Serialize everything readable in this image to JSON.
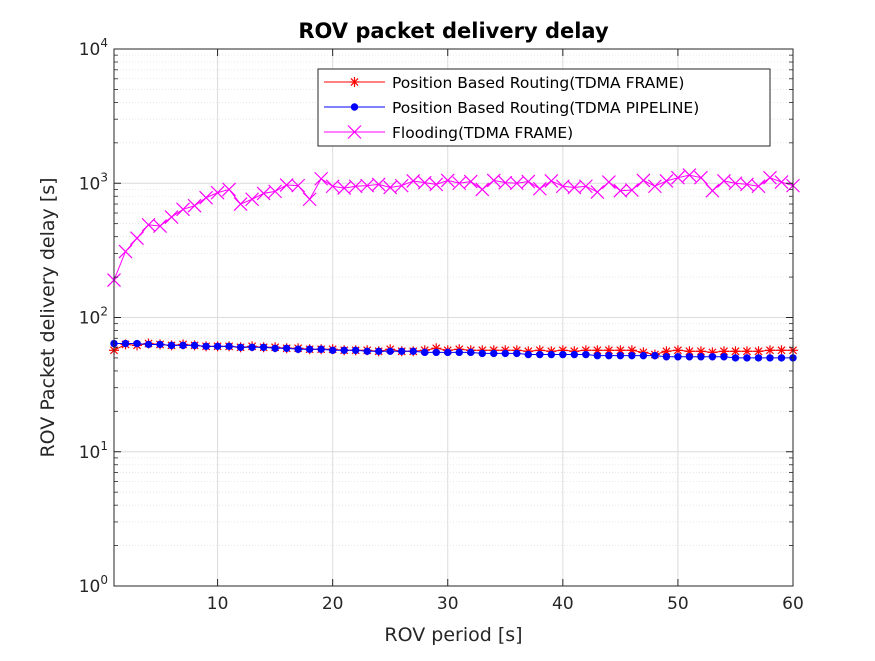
{
  "chart_data": {
    "type": "line",
    "title": "ROV packet delivery delay",
    "xlabel": "ROV period [s]",
    "ylabel": "ROV Packet delivery delay [s]",
    "xlim": [
      1,
      60
    ],
    "ylim": [
      1,
      10000
    ],
    "yscale": "log",
    "x_ticks": [
      10,
      20,
      30,
      40,
      50,
      60
    ],
    "y_ticks": [
      {
        "value": 1,
        "base": "10",
        "exp": "0"
      },
      {
        "value": 10,
        "base": "10",
        "exp": "1"
      },
      {
        "value": 100,
        "base": "10",
        "exp": "2"
      },
      {
        "value": 1000,
        "base": "10",
        "exp": "3"
      },
      {
        "value": 10000,
        "base": "10",
        "exp": "4"
      }
    ],
    "grid": true,
    "legend_position": "top-right",
    "x": [
      1,
      2,
      3,
      4,
      5,
      6,
      7,
      8,
      9,
      10,
      11,
      12,
      13,
      14,
      15,
      16,
      17,
      18,
      19,
      20,
      21,
      22,
      23,
      24,
      25,
      26,
      27,
      28,
      29,
      30,
      31,
      32,
      33,
      34,
      35,
      36,
      37,
      38,
      39,
      40,
      41,
      42,
      43,
      44,
      45,
      46,
      47,
      48,
      49,
      50,
      51,
      52,
      53,
      54,
      55,
      56,
      57,
      58,
      59,
      60
    ],
    "series": [
      {
        "name": "Position Based Routing(TDMA FRAME)",
        "color": "#ff0000",
        "marker": "asterisk",
        "values": [
          57,
          63,
          62,
          64,
          63,
          62,
          63,
          62,
          61,
          61,
          61,
          60,
          61,
          60,
          60,
          59,
          59,
          58,
          58,
          58,
          57,
          57,
          57,
          56,
          58,
          56,
          56,
          57,
          59,
          57,
          58,
          57,
          57,
          57,
          57,
          57,
          56,
          57,
          56,
          57,
          56,
          57,
          57,
          57,
          57,
          57,
          55,
          53,
          56,
          57,
          56,
          56,
          55,
          56,
          56,
          56,
          56,
          57,
          57,
          57
        ]
      },
      {
        "name": "Position Based Routing(TDMA PIPELINE)",
        "color": "#0000ff",
        "marker": "dot",
        "values": [
          64,
          64,
          64,
          63,
          63,
          62,
          62,
          62,
          61,
          61,
          61,
          60,
          60,
          60,
          59,
          59,
          58,
          58,
          58,
          57,
          57,
          57,
          56,
          56,
          56,
          56,
          56,
          55,
          55,
          55,
          55,
          55,
          54,
          54,
          54,
          54,
          53,
          53,
          53,
          53,
          53,
          53,
          52,
          52,
          52,
          52,
          52,
          52,
          51,
          51,
          51,
          51,
          51,
          51,
          50,
          50,
          50,
          50,
          50,
          50
        ]
      },
      {
        "name": "Flooding(TDMA FRAME)",
        "color": "#ff00ff",
        "marker": "cross",
        "values": [
          190,
          310,
          390,
          490,
          480,
          560,
          640,
          680,
          780,
          850,
          900,
          700,
          760,
          840,
          870,
          970,
          960,
          760,
          1080,
          950,
          920,
          950,
          960,
          980,
          930,
          960,
          1040,
          1010,
          980,
          1050,
          1000,
          1030,
          900,
          1050,
          1010,
          1000,
          1030,
          910,
          1040,
          950,
          930,
          950,
          860,
          1020,
          880,
          890,
          1050,
          950,
          1040,
          1100,
          1150,
          1100,
          880,
          1040,
          1000,
          980,
          950,
          1100,
          1020,
          960
        ]
      }
    ]
  }
}
